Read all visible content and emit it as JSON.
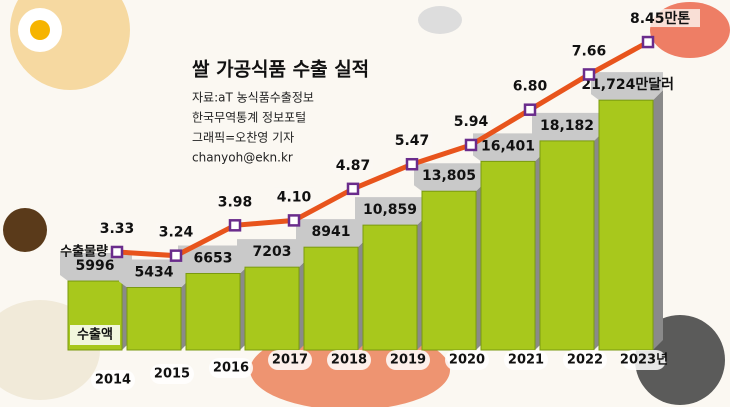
{
  "chart_data": {
    "type": "bar-line",
    "title": "쌀 가공식품 수출 실적",
    "source": [
      "자료:aT 농식품수출정보",
      "한국무역통계 정보포털",
      "그래픽=오찬영 기자",
      "chanyoh@ekn.kr"
    ],
    "categories": [
      "2014",
      "2015",
      "2016",
      "2017",
      "2018",
      "2019",
      "2020",
      "2021",
      "2022",
      "2023년"
    ],
    "series": [
      {
        "name": "수출액",
        "type": "bar",
        "color": "#a8c81c",
        "values": [
          5996,
          5434,
          6653,
          7203,
          8941,
          10859,
          13805,
          16401,
          18182,
          21724
        ],
        "value_labels": [
          "5996",
          "5434",
          "6653",
          "7203",
          "8941",
          "10,859",
          "13,805",
          "16,401",
          "18,182",
          "21,724만달러"
        ]
      },
      {
        "name": "수출물량",
        "type": "line",
        "color": "#e8541c",
        "values": [
          3.33,
          3.24,
          3.98,
          4.1,
          4.87,
          5.47,
          5.94,
          6.8,
          7.66,
          8.45
        ],
        "value_labels": [
          "3.33",
          "3.24",
          "3.98",
          "4.10",
          "4.87",
          "5.47",
          "5.94",
          "6.80",
          "7.66",
          "8.45만톤"
        ]
      }
    ]
  }
}
